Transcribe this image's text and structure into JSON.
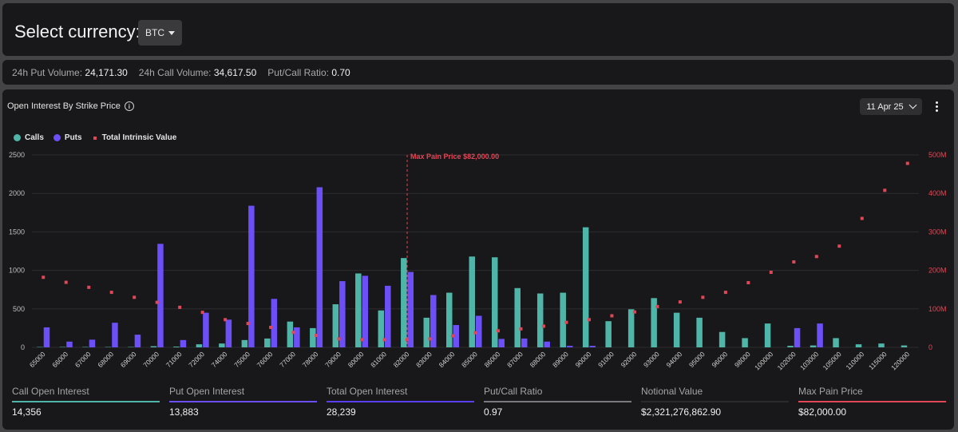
{
  "header": {
    "select_label": "Select currency:",
    "currency": "BTC"
  },
  "stats": [
    {
      "label": "24h Put Volume:",
      "value": "24,171.30"
    },
    {
      "label": "24h Call Volume:",
      "value": "34,617.50"
    },
    {
      "label": "Put/Call Ratio:",
      "value": "0.70"
    }
  ],
  "chart_panel": {
    "title": "Open Interest By Strike Price",
    "date": "11 Apr 25"
  },
  "legend": {
    "calls": "Calls",
    "puts": "Puts",
    "intrinsic": "Total Intrinsic Value"
  },
  "colors": {
    "calls": "#4fb5a8",
    "puts": "#6c4ff6",
    "intrinsic": "#e04757",
    "background": "#18181a",
    "grid": "#2c2c2f"
  },
  "chart_data": {
    "type": "bar",
    "categories": [
      "65000",
      "66000",
      "67000",
      "68000",
      "69000",
      "70000",
      "71000",
      "72000",
      "74000",
      "75000",
      "76000",
      "77000",
      "78000",
      "79000",
      "80000",
      "81000",
      "82000",
      "83000",
      "84000",
      "85000",
      "86000",
      "87000",
      "88000",
      "89000",
      "90000",
      "91000",
      "92000",
      "93000",
      "94000",
      "95000",
      "96000",
      "98000",
      "100000",
      "102000",
      "103000",
      "105000",
      "110000",
      "115000",
      "120000"
    ],
    "series": [
      {
        "name": "Calls",
        "axis": "left",
        "values": [
          5,
          5,
          5,
          5,
          5,
          15,
          10,
          40,
          50,
          95,
          115,
          335,
          250,
          560,
          960,
          480,
          1160,
          385,
          710,
          1180,
          1170,
          770,
          700,
          710,
          1560,
          340,
          495,
          640,
          450,
          385,
          200,
          120,
          310,
          20,
          25,
          120,
          40,
          50,
          25
        ]
      },
      {
        "name": "Puts",
        "axis": "left",
        "values": [
          260,
          75,
          100,
          320,
          165,
          1345,
          95,
          450,
          360,
          1840,
          630,
          260,
          2080,
          860,
          930,
          800,
          980,
          680,
          290,
          410,
          110,
          115,
          75,
          20,
          20,
          0,
          0,
          0,
          0,
          0,
          0,
          0,
          0,
          250,
          310,
          0,
          0,
          0,
          0
        ]
      },
      {
        "name": "Total Intrinsic Value",
        "axis": "right",
        "type": "scatter",
        "values": [
          182,
          169,
          156,
          143,
          130,
          117,
          104,
          91,
          72,
          62,
          52,
          39,
          31,
          22,
          20,
          20,
          20,
          22,
          30,
          38,
          43,
          48,
          55,
          65,
          72,
          82,
          92,
          106,
          118,
          130,
          143,
          168,
          195,
          222,
          236,
          263,
          335,
          408,
          478
        ]
      }
    ],
    "y_left": {
      "ylim": [
        0,
        2500
      ],
      "ticks": [
        "0",
        "500",
        "1000",
        "1500",
        "2000",
        "2500"
      ]
    },
    "y_right": {
      "ylim": [
        0,
        500
      ],
      "ticks": [
        "0",
        "100M",
        "200M",
        "300M",
        "400M",
        "500M"
      ]
    },
    "annotation": {
      "label": "Max Pain Price $82,000.00",
      "strike": "82000"
    }
  },
  "footer": [
    {
      "label": "Call Open Interest",
      "value": "14,356",
      "color": "#4fb5a8"
    },
    {
      "label": "Put Open Interest",
      "value": "13,883",
      "color": "#6c4ff6"
    },
    {
      "label": "Total Open Interest",
      "value": "28,239",
      "color": "#5a3ff0"
    },
    {
      "label": "Put/Call Ratio",
      "value": "0.97",
      "color": "#7a7a7e"
    },
    {
      "label": "Notional Value",
      "value": "$2,321,276,862.90",
      "color": "#2b2b2e"
    },
    {
      "label": "Max Pain Price",
      "value": "$82,000.00",
      "color": "#e04757"
    }
  ]
}
